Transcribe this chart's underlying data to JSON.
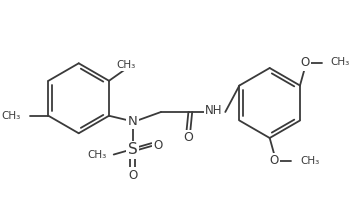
{
  "bg_color": "#ffffff",
  "line_color": "#3a3a3a",
  "text_color": "#3a3a3a",
  "lw": 1.3,
  "fs": 8.0,
  "figsize": [
    3.5,
    2.06
  ],
  "dpi": 100,
  "xlim": [
    0,
    350
  ],
  "ylim": [
    0,
    206
  ]
}
